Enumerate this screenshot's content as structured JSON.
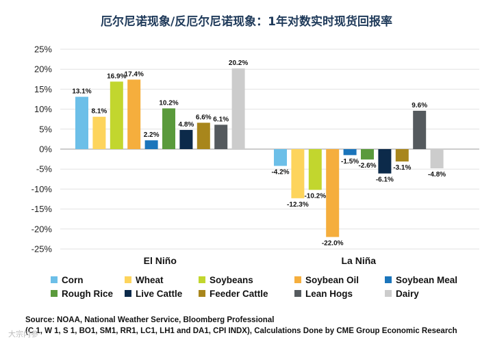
{
  "chart_data": {
    "type": "bar",
    "title": "厄尔尼诺现象/反厄尔尼诺现象：1年对数实时现货回报率",
    "categories": [
      "El Niño",
      "La Niña"
    ],
    "ylim": [
      -25,
      25
    ],
    "yticks": [
      25,
      20,
      15,
      10,
      5,
      0,
      -5,
      -10,
      -15,
      -20,
      -25
    ],
    "ytick_labels": [
      "25%",
      "20%",
      "15%",
      "10%",
      "5%",
      "0%",
      "-5%",
      "-10%",
      "-15%",
      "-20%",
      "-25%"
    ],
    "xlabel": "",
    "ylabel": "",
    "legend_position": "bottom",
    "series": [
      {
        "name": "Corn",
        "color": "#6cbfe8",
        "values": [
          13.1,
          -4.2
        ],
        "labels": [
          "13.1%",
          "-4.2%"
        ]
      },
      {
        "name": "Wheat",
        "color": "#fdd45c",
        "values": [
          8.1,
          -12.3
        ],
        "labels": [
          "8.1%",
          "-12.3%"
        ]
      },
      {
        "name": "Soybeans",
        "color": "#c2d62e",
        "values": [
          16.9,
          -10.2
        ],
        "labels": [
          "16.9%",
          "-10.2%"
        ]
      },
      {
        "name": "Soybean Oil",
        "color": "#f5ae3d",
        "values": [
          17.4,
          -22.0
        ],
        "labels": [
          "17.4%",
          "-22.0%"
        ]
      },
      {
        "name": "Soybean Meal",
        "color": "#1b75bb",
        "values": [
          2.2,
          -1.5
        ],
        "labels": [
          "2.2%",
          "-1.5%"
        ]
      },
      {
        "name": "Rough Rice",
        "color": "#5a9a3c",
        "values": [
          10.2,
          -2.6
        ],
        "labels": [
          "10.2%",
          "-2.6%"
        ]
      },
      {
        "name": "Live Cattle",
        "color": "#0c2a4a",
        "values": [
          4.8,
          -6.1
        ],
        "labels": [
          "4.8%",
          "-6.1%"
        ]
      },
      {
        "name": "Feeder Cattle",
        "color": "#a8861c",
        "values": [
          6.6,
          -3.1
        ],
        "labels": [
          "6.6%",
          "-3.1%"
        ]
      },
      {
        "name": "Lean Hogs",
        "color": "#555a5e",
        "values": [
          6.1,
          9.6
        ],
        "labels": [
          "6.1%",
          "9.6%"
        ]
      },
      {
        "name": "Dairy",
        "color": "#cccccc",
        "values": [
          20.2,
          -4.8
        ],
        "labels": [
          "20.2%",
          "-4.8%"
        ]
      }
    ]
  },
  "source": {
    "line1": "Source: NOAA, National Weather Service, Bloomberg Professional",
    "line2": "(C 1, W 1, S 1, BO1, SM1, RR1, LC1, LH1 and DA1, CPI INDX), Calculations Done by CME Group Economic Research"
  },
  "watermark": "大宗内参"
}
